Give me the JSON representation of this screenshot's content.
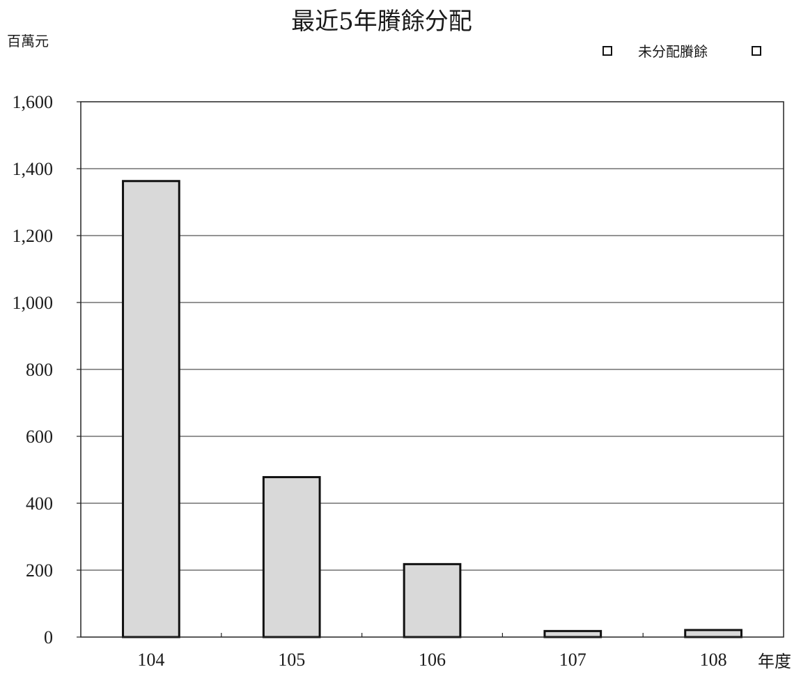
{
  "chart_data": {
    "type": "bar",
    "title": "最近5年賸餘分配",
    "ylabel": "百萬元",
    "xlabel": "年度",
    "categories": [
      "104",
      "105",
      "106",
      "107",
      "108"
    ],
    "series": [
      {
        "name": "未分配賸餘",
        "values": [
          1363,
          478,
          218,
          18,
          21
        ]
      }
    ],
    "ylim": [
      0,
      1600
    ],
    "yticks": [
      0,
      200,
      400,
      600,
      800,
      1000,
      1200,
      1400,
      1600
    ],
    "ytick_labels": [
      "0",
      "200",
      "400",
      "600",
      "800",
      "1,000",
      "1,200",
      "1,400",
      "1,600"
    ],
    "grid": true,
    "legend_position": "top-right",
    "colors": {
      "bar_fill": "#d9d9d9",
      "bar_stroke": "#111111"
    }
  }
}
